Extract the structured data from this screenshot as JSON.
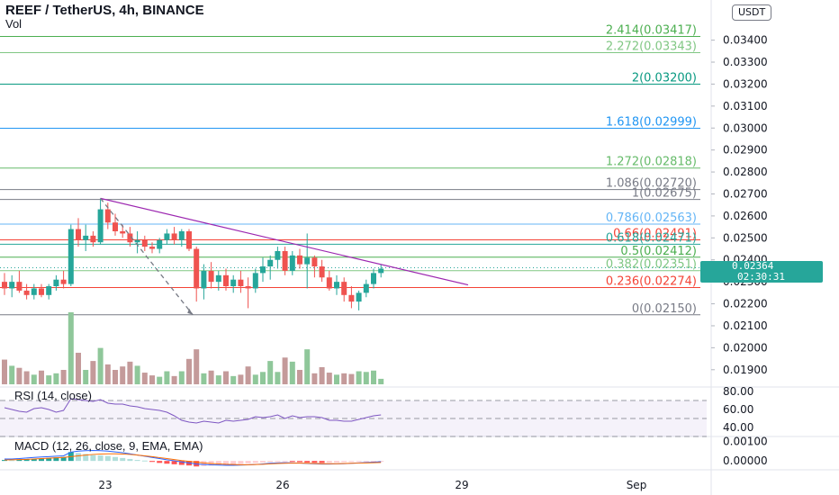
{
  "header": {
    "title": "REEF / TetherUS, 4h, BINANCE",
    "volume_label": "Vol",
    "currency": "USDT"
  },
  "colors": {
    "up": "#26a69a",
    "down": "#ef5350",
    "vol_up": "#8fc79a",
    "vol_down": "#c49a9a",
    "trendline": "#9c27b0",
    "rsi_line": "#7e57c2",
    "macd_line": "#2962ff",
    "signal_line": "#ff6d00"
  },
  "chart_data": [
    {
      "type": "candlestick",
      "title": "REEF / TetherUS, 4h, BINANCE",
      "ylim": [
        0.0185,
        0.0355
      ],
      "y_ticks": [
        "0.01900",
        "0.02000",
        "0.02100",
        "0.02200",
        "0.02300",
        "0.02400",
        "0.02500",
        "0.02600",
        "0.02700",
        "0.02800",
        "0.02900",
        "0.03000",
        "0.03100",
        "0.03200",
        "0.03300",
        "0.03400"
      ],
      "x_ticks": [
        "23",
        "26",
        "29",
        "Sep"
      ],
      "current_price": "0.02364",
      "countdown": "02:30:31",
      "candles": [
        {
          "o": 0.023,
          "h": 0.0234,
          "l": 0.0224,
          "c": 0.0227
        },
        {
          "o": 0.0227,
          "h": 0.0233,
          "l": 0.0223,
          "c": 0.023
        },
        {
          "o": 0.023,
          "h": 0.0235,
          "l": 0.0225,
          "c": 0.0226
        },
        {
          "o": 0.0226,
          "h": 0.0229,
          "l": 0.0222,
          "c": 0.0224
        },
        {
          "o": 0.0224,
          "h": 0.0229,
          "l": 0.0222,
          "c": 0.0227
        },
        {
          "o": 0.0227,
          "h": 0.0229,
          "l": 0.0223,
          "c": 0.0224
        },
        {
          "o": 0.0224,
          "h": 0.0229,
          "l": 0.0222,
          "c": 0.0228
        },
        {
          "o": 0.0228,
          "h": 0.0233,
          "l": 0.0226,
          "c": 0.0231
        },
        {
          "o": 0.0231,
          "h": 0.0235,
          "l": 0.0227,
          "c": 0.0229
        },
        {
          "o": 0.0229,
          "h": 0.0256,
          "l": 0.0228,
          "c": 0.0254
        },
        {
          "o": 0.0254,
          "h": 0.0259,
          "l": 0.0246,
          "c": 0.0249
        },
        {
          "o": 0.0249,
          "h": 0.0256,
          "l": 0.0244,
          "c": 0.0251
        },
        {
          "o": 0.0251,
          "h": 0.0253,
          "l": 0.0246,
          "c": 0.0248
        },
        {
          "o": 0.0248,
          "h": 0.0268,
          "l": 0.0247,
          "c": 0.0263
        },
        {
          "o": 0.0263,
          "h": 0.0266,
          "l": 0.0254,
          "c": 0.0257
        },
        {
          "o": 0.0257,
          "h": 0.0261,
          "l": 0.0251,
          "c": 0.0253
        },
        {
          "o": 0.0253,
          "h": 0.0256,
          "l": 0.025,
          "c": 0.0252
        },
        {
          "o": 0.0252,
          "h": 0.0255,
          "l": 0.0246,
          "c": 0.0248
        },
        {
          "o": 0.0248,
          "h": 0.0253,
          "l": 0.0243,
          "c": 0.0249
        },
        {
          "o": 0.0249,
          "h": 0.0251,
          "l": 0.0244,
          "c": 0.0246
        },
        {
          "o": 0.0246,
          "h": 0.0248,
          "l": 0.0243,
          "c": 0.0245
        },
        {
          "o": 0.0245,
          "h": 0.025,
          "l": 0.0243,
          "c": 0.0249
        },
        {
          "o": 0.0249,
          "h": 0.0254,
          "l": 0.0247,
          "c": 0.0252
        },
        {
          "o": 0.0252,
          "h": 0.0255,
          "l": 0.0247,
          "c": 0.0249
        },
        {
          "o": 0.0249,
          "h": 0.0254,
          "l": 0.0246,
          "c": 0.0253
        },
        {
          "o": 0.0253,
          "h": 0.0254,
          "l": 0.0244,
          "c": 0.0245
        },
        {
          "o": 0.0245,
          "h": 0.0246,
          "l": 0.0221,
          "c": 0.0227
        },
        {
          "o": 0.0227,
          "h": 0.0238,
          "l": 0.0222,
          "c": 0.0235
        },
        {
          "o": 0.0235,
          "h": 0.0239,
          "l": 0.0227,
          "c": 0.023
        },
        {
          "o": 0.023,
          "h": 0.0235,
          "l": 0.0226,
          "c": 0.0233
        },
        {
          "o": 0.0233,
          "h": 0.0236,
          "l": 0.0226,
          "c": 0.0228
        },
        {
          "o": 0.0228,
          "h": 0.0233,
          "l": 0.0225,
          "c": 0.0231
        },
        {
          "o": 0.0231,
          "h": 0.0235,
          "l": 0.0225,
          "c": 0.0228
        },
        {
          "o": 0.0228,
          "h": 0.0232,
          "l": 0.0218,
          "c": 0.0227
        },
        {
          "o": 0.0227,
          "h": 0.0236,
          "l": 0.0225,
          "c": 0.0234
        },
        {
          "o": 0.0234,
          "h": 0.0241,
          "l": 0.023,
          "c": 0.0237
        },
        {
          "o": 0.0237,
          "h": 0.0242,
          "l": 0.0231,
          "c": 0.024
        },
        {
          "o": 0.024,
          "h": 0.0246,
          "l": 0.0236,
          "c": 0.0244
        },
        {
          "o": 0.0244,
          "h": 0.0246,
          "l": 0.0233,
          "c": 0.0235
        },
        {
          "o": 0.0235,
          "h": 0.0244,
          "l": 0.0233,
          "c": 0.0242
        },
        {
          "o": 0.0242,
          "h": 0.0245,
          "l": 0.0236,
          "c": 0.0238
        },
        {
          "o": 0.0238,
          "h": 0.0252,
          "l": 0.0227,
          "c": 0.0241
        },
        {
          "o": 0.0241,
          "h": 0.0242,
          "l": 0.0232,
          "c": 0.0237
        },
        {
          "o": 0.0237,
          "h": 0.024,
          "l": 0.023,
          "c": 0.0232
        },
        {
          "o": 0.0232,
          "h": 0.0235,
          "l": 0.0226,
          "c": 0.0227
        },
        {
          "o": 0.0227,
          "h": 0.0233,
          "l": 0.0224,
          "c": 0.023
        },
        {
          "o": 0.023,
          "h": 0.0232,
          "l": 0.0221,
          "c": 0.0224
        },
        {
          "o": 0.0224,
          "h": 0.0228,
          "l": 0.0218,
          "c": 0.0221
        },
        {
          "o": 0.0221,
          "h": 0.0226,
          "l": 0.0217,
          "c": 0.0225
        },
        {
          "o": 0.0225,
          "h": 0.0231,
          "l": 0.0223,
          "c": 0.0229
        },
        {
          "o": 0.0229,
          "h": 0.0236,
          "l": 0.0227,
          "c": 0.0234
        },
        {
          "o": 0.0234,
          "h": 0.0238,
          "l": 0.0232,
          "c": 0.0236
        }
      ],
      "volume": [
        3.6,
        2.7,
        2.4,
        1.9,
        1.4,
        2.0,
        1.3,
        1.6,
        2.1,
        10.5,
        4.6,
        2.1,
        3.4,
        5.3,
        2.9,
        2.1,
        2.6,
        3.3,
        2.7,
        1.7,
        1.3,
        1.1,
        1.9,
        1.2,
        1.9,
        3.7,
        5.1,
        1.6,
        2.0,
        1.3,
        1.9,
        1.2,
        1.4,
        2.6,
        1.4,
        1.8,
        3.4,
        1.8,
        3.9,
        3.3,
        2.1,
        5.1,
        1.6,
        2.5,
        1.7,
        1.4,
        1.6,
        1.5,
        1.9,
        1.8,
        2.0,
        0.8
      ],
      "fibonacci": [
        {
          "label": "2.414(0.03417)",
          "price": 0.03417,
          "color": "#4caf50"
        },
        {
          "label": "2.272(0.03343)",
          "price": 0.03343,
          "color": "#81c784"
        },
        {
          "label": "2(0.03200)",
          "price": 0.032,
          "color": "#089981"
        },
        {
          "label": "1.618(0.02999)",
          "price": 0.02999,
          "color": "#2196f3"
        },
        {
          "label": "1.272(0.02818)",
          "price": 0.02818,
          "color": "#66bb6a"
        },
        {
          "label": "1.086(0.02720)",
          "price": 0.0272,
          "color": "#787b86"
        },
        {
          "label": "1(0.02675)",
          "price": 0.02675,
          "color": "#787b86"
        },
        {
          "label": "0.786(0.02563)",
          "price": 0.02563,
          "color": "#64b5f6"
        },
        {
          "label": "0.66(0.02491)",
          "price": 0.02491,
          "color": "#f44336"
        },
        {
          "label": "0.618(0.02471)",
          "price": 0.02471,
          "color": "#26a69a"
        },
        {
          "label": "0.5(0.02412)",
          "price": 0.02412,
          "color": "#4caf50"
        },
        {
          "label": "0.382(0.02351)",
          "price": 0.02351,
          "color": "#81c784"
        },
        {
          "label": "0.236(0.02274)",
          "price": 0.02274,
          "color": "#f44336"
        },
        {
          "label": "0(0.02150)",
          "price": 0.0215,
          "color": "#787b86"
        }
      ]
    },
    {
      "type": "line",
      "title": "RSI (14, close)",
      "ylim": [
        30,
        85
      ],
      "y_ticks": [
        "80.00",
        "60.00",
        "40.00"
      ],
      "band": [
        30,
        70
      ],
      "values": [
        62,
        60,
        58,
        57,
        61,
        62,
        60,
        57,
        59,
        72,
        71,
        70,
        69,
        71,
        67,
        66,
        66,
        64,
        63,
        61,
        60,
        59,
        57,
        53,
        48,
        46,
        45,
        47,
        46,
        45,
        48,
        47,
        48,
        49,
        52,
        51,
        52,
        54,
        50,
        53,
        51,
        52,
        52,
        51,
        48,
        48,
        47,
        47,
        49,
        51,
        53,
        54
      ]
    },
    {
      "type": "bar",
      "title": "MACD (12, 26, close, 9, EMA, EMA)",
      "ylim": [
        -0.00045,
        0.00115
      ],
      "y_ticks": [
        "0.00100",
        "0.00000"
      ],
      "histogram": [
        5e-05,
        4e-05,
        6e-05,
        8e-05,
        0.0001,
        0.00012,
        0.00015,
        0.00018,
        0.0002,
        0.00045,
        0.0004,
        0.00035,
        0.0003,
        0.00028,
        0.00025,
        0.0002,
        0.00015,
        0.0001,
        5e-05,
        2e-05,
        -5e-05,
        -0.0001,
        -0.00014,
        -0.00017,
        -0.0002,
        -0.00023,
        -0.00028,
        -0.00026,
        -0.00024,
        -0.00022,
        -0.0002,
        -0.00018,
        -0.00015,
        -0.00012,
        -0.0001,
        -8e-05,
        -6e-05,
        -5e-05,
        -4e-05,
        -5e-05,
        -6e-05,
        -8e-05,
        -9e-05,
        -0.0001,
        -9e-05,
        -8e-05,
        -6e-05,
        -5e-05,
        -4e-05,
        -3e-05,
        -2e-05,
        -1e-05
      ],
      "macd": [
        0.0001,
        0.0001,
        0.00012,
        0.00015,
        0.00018,
        0.0002,
        0.00022,
        0.00024,
        0.00026,
        0.00045,
        0.0005,
        0.00052,
        0.00053,
        0.00052,
        0.0005,
        0.00046,
        0.00042,
        0.00036,
        0.0003,
        0.00024,
        0.00018,
        0.00012,
        6e-05,
        1e-05,
        -5e-05,
        -0.0001,
        -0.00016,
        -0.00018,
        -0.0002,
        -0.00021,
        -0.00022,
        -0.00022,
        -0.00021,
        -0.0002,
        -0.00018,
        -0.00015,
        -0.00012,
        -0.0001,
        -9e-05,
        -0.0001,
        -0.00011,
        -0.00013,
        -0.00015,
        -0.00016,
        -0.00016,
        -0.00015,
        -0.00014,
        -0.00012,
        -0.0001,
        -8e-05,
        -6e-05,
        -4e-05
      ],
      "signal": [
        5e-05,
        6e-05,
        7e-05,
        8e-05,
        0.0001,
        0.00012,
        0.00014,
        0.00016,
        0.00018,
        0.00022,
        0.00026,
        0.0003,
        0.00033,
        0.00035,
        0.00036,
        0.00036,
        0.00035,
        0.00033,
        0.0003,
        0.00026,
        0.00022,
        0.00017,
        0.00012,
        7e-05,
        2e-05,
        -2e-05,
        -6e-05,
        -0.0001,
        -0.00013,
        -0.00015,
        -0.00017,
        -0.00018,
        -0.00019,
        -0.00019,
        -0.00018,
        -0.00017,
        -0.00015,
        -0.00013,
        -0.00012,
        -0.00011,
        -0.00011,
        -0.00012,
        -0.00013,
        -0.00014,
        -0.00014,
        -0.00014,
        -0.00013,
        -0.00012,
        -0.00011,
        -0.0001,
        -9e-05,
        -8e-05
      ]
    }
  ]
}
